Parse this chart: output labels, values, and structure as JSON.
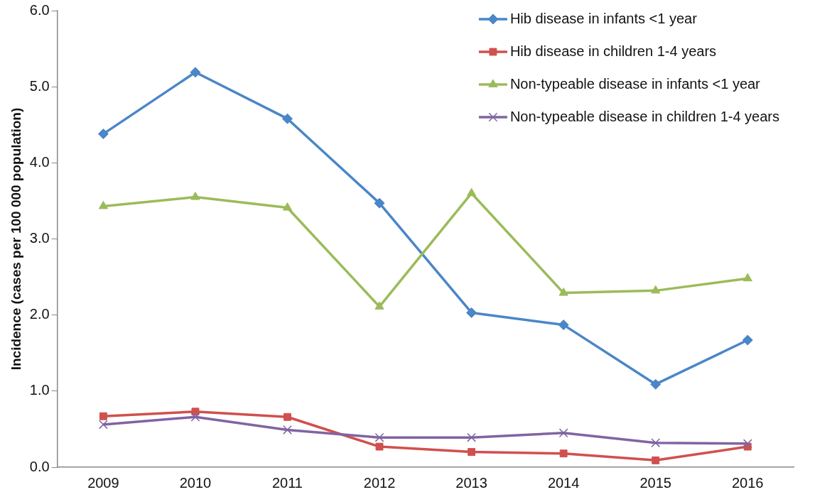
{
  "chart_data": {
    "type": "line",
    "ylabel": "Incidence (cases per 100 000 population)",
    "categories": [
      "2009",
      "2010",
      "2011",
      "2012",
      "2013",
      "2014",
      "2015",
      "2016"
    ],
    "ylim": [
      0,
      6
    ],
    "yticks": [
      {
        "value": 0,
        "label": "0.0"
      },
      {
        "value": 1,
        "label": "1.0"
      },
      {
        "value": 2,
        "label": "2.0"
      },
      {
        "value": 3,
        "label": "3.0"
      },
      {
        "value": 4,
        "label": "4.0"
      },
      {
        "value": 5,
        "label": "5.0"
      },
      {
        "value": 6,
        "label": "6.0"
      }
    ],
    "grid": false,
    "legend": "top right",
    "line_style": "solid",
    "series": [
      {
        "name": "Hib disease in infants <1 year",
        "color": "#4a86c8",
        "marker": "diamond",
        "values": [
          4.38,
          5.19,
          4.58,
          3.47,
          2.03,
          1.87,
          1.09,
          1.67
        ]
      },
      {
        "name": "Hib disease in children 1-4 years",
        "color": "#d0504d",
        "marker": "square",
        "values": [
          0.67,
          0.73,
          0.66,
          0.27,
          0.2,
          0.18,
          0.09,
          0.27
        ]
      },
      {
        "name": "Non-typeable disease in infants <1 year",
        "color": "#9bbb59",
        "marker": "triangle",
        "values": [
          3.43,
          3.55,
          3.41,
          2.11,
          3.6,
          2.29,
          2.32,
          2.48
        ]
      },
      {
        "name": "Non-typeable disease in children 1-4 years",
        "color": "#8064a2",
        "marker": "cross",
        "values": [
          0.56,
          0.66,
          0.49,
          0.39,
          0.39,
          0.45,
          0.32,
          0.31
        ]
      }
    ]
  }
}
